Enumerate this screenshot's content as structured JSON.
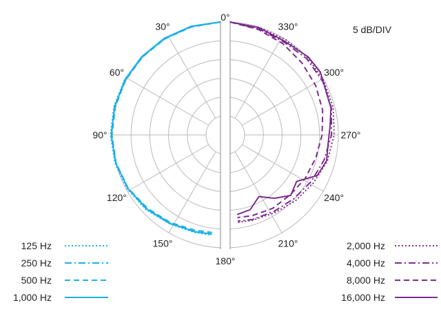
{
  "chart_data": {
    "type": "polar",
    "title": "",
    "scale_label": "5 dB/DIV",
    "angle_ticks": [
      {
        "deg": 0,
        "label": "0°"
      },
      {
        "deg": 30,
        "label": "30°"
      },
      {
        "deg": 60,
        "label": "60°"
      },
      {
        "deg": 90,
        "label": "90°"
      },
      {
        "deg": 120,
        "label": "120°"
      },
      {
        "deg": 150,
        "label": "150°"
      },
      {
        "deg": 180,
        "label": "180°"
      },
      {
        "deg": 210,
        "label": "210°"
      },
      {
        "deg": 240,
        "label": "240°"
      },
      {
        "deg": 270,
        "label": "270°"
      },
      {
        "deg": 300,
        "label": "300°"
      },
      {
        "deg": 330,
        "label": "330°"
      }
    ],
    "radial_unit_db": 5,
    "radial_rings": 5,
    "range_db": [
      -25,
      0
    ],
    "grid": true,
    "legend_left": [
      {
        "name": "125 Hz",
        "key": "125",
        "color": "#1ab0e8",
        "dash": "dotted"
      },
      {
        "name": "250 Hz",
        "key": "250",
        "color": "#1ab0e8",
        "dash": "dashdot"
      },
      {
        "name": "500 Hz",
        "key": "500",
        "color": "#1ab0e8",
        "dash": "dashed"
      },
      {
        "name": "1,000 Hz",
        "key": "1000",
        "color": "#1ab0e8",
        "dash": "solid"
      }
    ],
    "legend_right": [
      {
        "name": "2,000 Hz",
        "key": "2000",
        "color": "#7b2b8e",
        "dash": "dotted"
      },
      {
        "name": "4,000 Hz",
        "key": "4000",
        "color": "#7b2b8e",
        "dash": "dashdot"
      },
      {
        "name": "8,000 Hz",
        "key": "8000",
        "color": "#7b2b8e",
        "dash": "dashed"
      },
      {
        "name": "16,000 Hz",
        "key": "16000",
        "color": "#7b2b8e",
        "dash": "solid"
      }
    ],
    "series": [
      {
        "key": "125",
        "side": "left",
        "color": "#1ab0e8",
        "dash": "dotted",
        "points": [
          [
            0,
            0
          ],
          [
            15,
            -0.1
          ],
          [
            30,
            -0.3
          ],
          [
            45,
            -0.5
          ],
          [
            60,
            -0.6
          ],
          [
            75,
            -0.7
          ],
          [
            90,
            -0.8
          ],
          [
            105,
            -1.0
          ],
          [
            120,
            -1.4
          ],
          [
            135,
            -2.0
          ],
          [
            150,
            -2.8
          ],
          [
            165,
            -3.2
          ],
          [
            175,
            -3.3
          ]
        ]
      },
      {
        "key": "250",
        "side": "left",
        "color": "#1ab0e8",
        "dash": "dashdot",
        "points": [
          [
            0,
            0
          ],
          [
            15,
            -0.2
          ],
          [
            30,
            -0.4
          ],
          [
            45,
            -0.6
          ],
          [
            60,
            -0.8
          ],
          [
            75,
            -0.9
          ],
          [
            90,
            -1.0
          ],
          [
            105,
            -1.2
          ],
          [
            120,
            -1.6
          ],
          [
            135,
            -2.3
          ],
          [
            150,
            -3.0
          ],
          [
            165,
            -3.4
          ],
          [
            175,
            -3.5
          ]
        ]
      },
      {
        "key": "500",
        "side": "left",
        "color": "#1ab0e8",
        "dash": "dashed",
        "points": [
          [
            0,
            0
          ],
          [
            15,
            -0.3
          ],
          [
            30,
            -0.5
          ],
          [
            45,
            -0.7
          ],
          [
            60,
            -0.9
          ],
          [
            75,
            -1.1
          ],
          [
            90,
            -1.2
          ],
          [
            105,
            -1.3
          ],
          [
            120,
            -1.7
          ],
          [
            135,
            -2.5
          ],
          [
            150,
            -3.2
          ],
          [
            165,
            -3.8
          ],
          [
            175,
            -4.0
          ]
        ]
      },
      {
        "key": "1000",
        "side": "left",
        "color": "#1ab0e8",
        "dash": "solid",
        "points": [
          [
            0,
            0
          ],
          [
            15,
            -0.1
          ],
          [
            30,
            -0.3
          ],
          [
            45,
            -0.5
          ],
          [
            60,
            -0.7
          ],
          [
            75,
            -0.9
          ],
          [
            90,
            -1.0
          ],
          [
            105,
            -1.2
          ],
          [
            120,
            -1.6
          ],
          [
            135,
            -2.2
          ],
          [
            150,
            -2.9
          ],
          [
            165,
            -3.4
          ],
          [
            175,
            -3.6
          ]
        ]
      },
      {
        "key": "2000",
        "side": "right",
        "color": "#7b2b8e",
        "dash": "dotted",
        "points": [
          [
            0,
            0
          ],
          [
            345,
            -0.4
          ],
          [
            330,
            -0.7
          ],
          [
            315,
            -0.9
          ],
          [
            300,
            -1.3
          ],
          [
            285,
            -1.7
          ],
          [
            270,
            -2.4
          ],
          [
            255,
            -3.3
          ],
          [
            240,
            -4.5
          ],
          [
            225,
            -5.4
          ],
          [
            210,
            -6.2
          ],
          [
            195,
            -6.6
          ],
          [
            185,
            -6.7
          ]
        ]
      },
      {
        "key": "4000",
        "side": "right",
        "color": "#7b2b8e",
        "dash": "dashdot",
        "points": [
          [
            0,
            0
          ],
          [
            345,
            -0.8
          ],
          [
            330,
            -1.5
          ],
          [
            315,
            -1.3
          ],
          [
            300,
            -1.6
          ],
          [
            285,
            -2.2
          ],
          [
            270,
            -3.1
          ],
          [
            255,
            -4.2
          ],
          [
            240,
            -5.2
          ],
          [
            225,
            -6.1
          ],
          [
            210,
            -6.6
          ],
          [
            195,
            -6.8
          ],
          [
            185,
            -7.0
          ]
        ]
      },
      {
        "key": "8000",
        "side": "right",
        "color": "#7b2b8e",
        "dash": "dashed",
        "points": [
          [
            0,
            0
          ],
          [
            345,
            -1.0
          ],
          [
            330,
            -2.0
          ],
          [
            315,
            -3.0
          ],
          [
            300,
            -3.8
          ],
          [
            285,
            -4.6
          ],
          [
            270,
            -5.6
          ],
          [
            255,
            -6.5
          ],
          [
            240,
            -7.0
          ],
          [
            225,
            -7.5
          ],
          [
            210,
            -7.5
          ],
          [
            195,
            -7.8
          ],
          [
            185,
            -8.0
          ]
        ]
      },
      {
        "key": "16000",
        "side": "right",
        "color": "#7b2b8e",
        "dash": "solid",
        "points": [
          [
            0,
            0
          ],
          [
            345,
            -0.5
          ],
          [
            330,
            -1.2
          ],
          [
            315,
            -0.7
          ],
          [
            305,
            -0.8
          ],
          [
            295,
            -2.0
          ],
          [
            285,
            -2.3
          ],
          [
            275,
            -3.4
          ],
          [
            265,
            -3.9
          ],
          [
            255,
            -3.5
          ],
          [
            245,
            -4.5
          ],
          [
            235,
            -8.5
          ],
          [
            225,
            -7.3
          ],
          [
            215,
            -9.5
          ],
          [
            205,
            -12.0
          ],
          [
            195,
            -9.5
          ],
          [
            185,
            -8.8
          ]
        ]
      }
    ]
  }
}
